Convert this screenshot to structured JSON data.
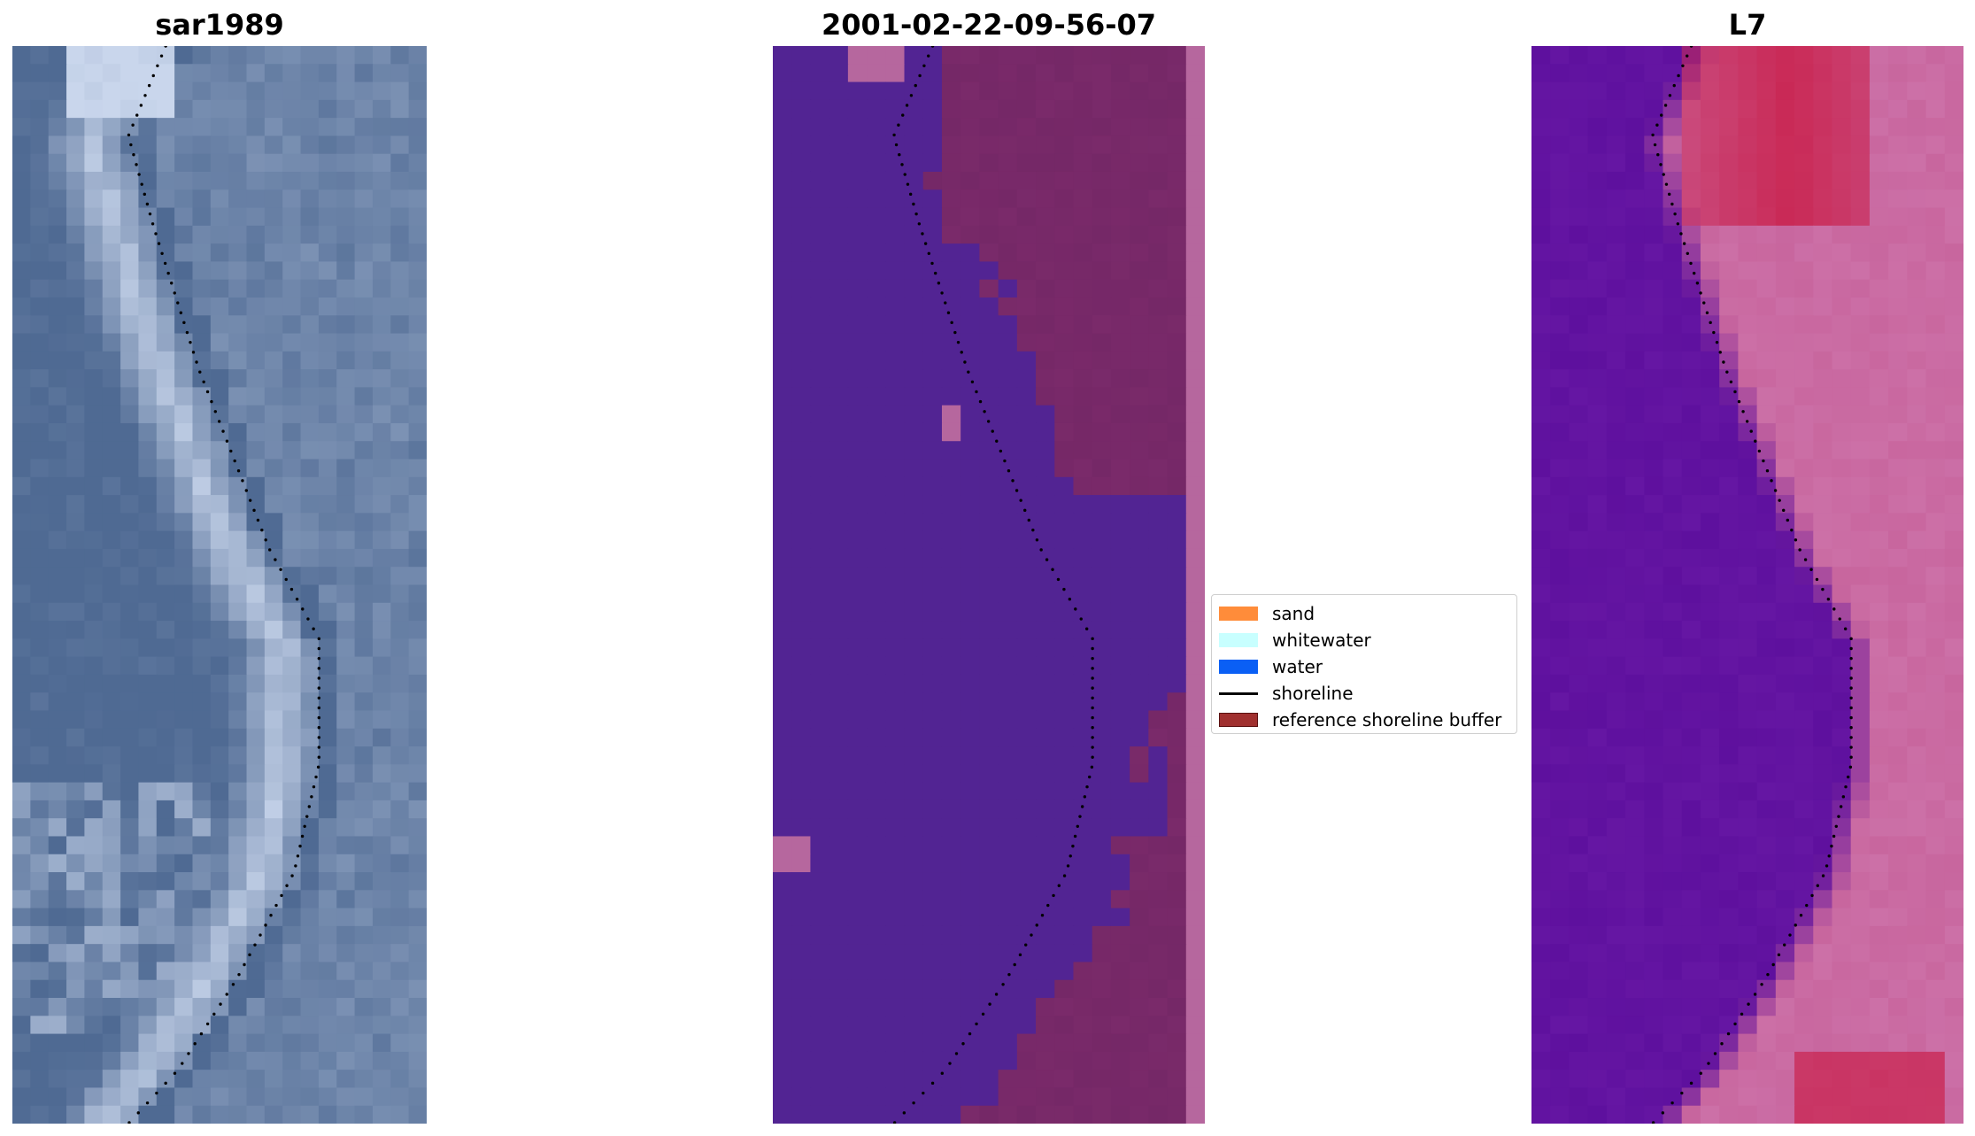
{
  "panels": [
    {
      "title": "sar1989"
    },
    {
      "title": "2001-02-22-09-56-07"
    },
    {
      "title": "L7"
    }
  ],
  "legend": {
    "items": [
      {
        "label": "sand",
        "color": "#ff8c3a"
      },
      {
        "label": "whitewater",
        "color": "#c8ffff"
      },
      {
        "label": "water",
        "color": "#0a5ff5"
      },
      {
        "label": "shoreline",
        "color": "#000000"
      },
      {
        "label": "reference shoreline buffer",
        "color": "#a0302f"
      }
    ]
  },
  "colors": {
    "sar_base": "#4f6a93",
    "sar_highlight": "#c9d6ec",
    "class_water": "#522493",
    "class_land": "#7a2a6a",
    "class_noise": "#b6679e",
    "l7_water": "#5e109e",
    "l7_land": "#c8669e",
    "l7_bright": "#c9133c"
  }
}
